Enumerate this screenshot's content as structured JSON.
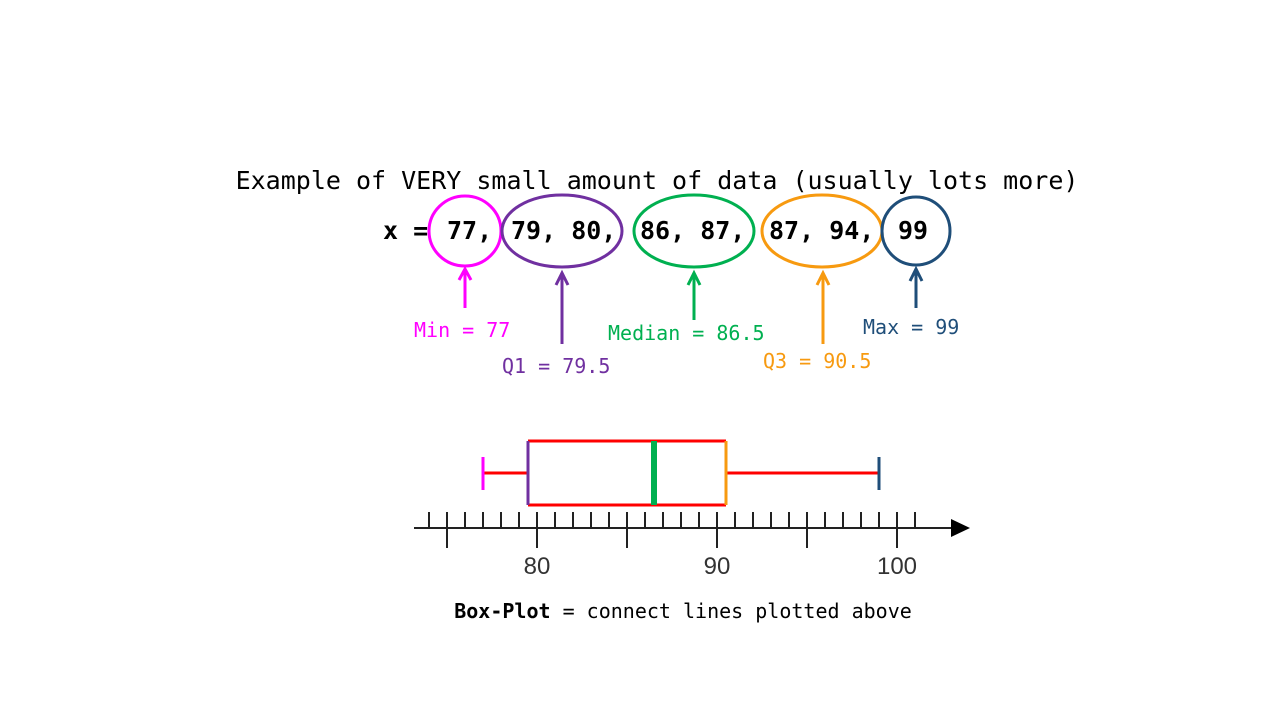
{
  "title": "Example of VERY small amount of data (usually lots more)",
  "data_line": {
    "prefix": "x =",
    "groups": [
      {
        "text": "77,",
        "color": "#ff00ff"
      },
      {
        "text": "79, 80,",
        "color": "#7030a0"
      },
      {
        "text": "86, 87,",
        "color": "#00b050"
      },
      {
        "text": "87, 94,",
        "color": "#f79a10"
      },
      {
        "text": "99",
        "color": "#1f4e79"
      }
    ]
  },
  "annotations": {
    "min": {
      "text": "Min = 77",
      "color": "#ff00ff"
    },
    "q1": {
      "text": "Q1 = 79.5",
      "color": "#7030a0"
    },
    "median": {
      "text": "Median = 86.5",
      "color": "#00b050"
    },
    "q3": {
      "text": "Q3 = 90.5",
      "color": "#f79a10"
    },
    "max": {
      "text": "Max = 99",
      "color": "#1f4e79"
    }
  },
  "box_plot": {
    "min": 77,
    "q1": 79.5,
    "median": 86.5,
    "q3": 90.5,
    "max": 99,
    "whisker_color": "#ff0000",
    "box_color": "#ff0000"
  },
  "axis": {
    "ticks": [
      "80",
      "90",
      "100"
    ]
  },
  "caption": {
    "bold": "Box-Plot",
    "rest": " = connect lines plotted above"
  }
}
